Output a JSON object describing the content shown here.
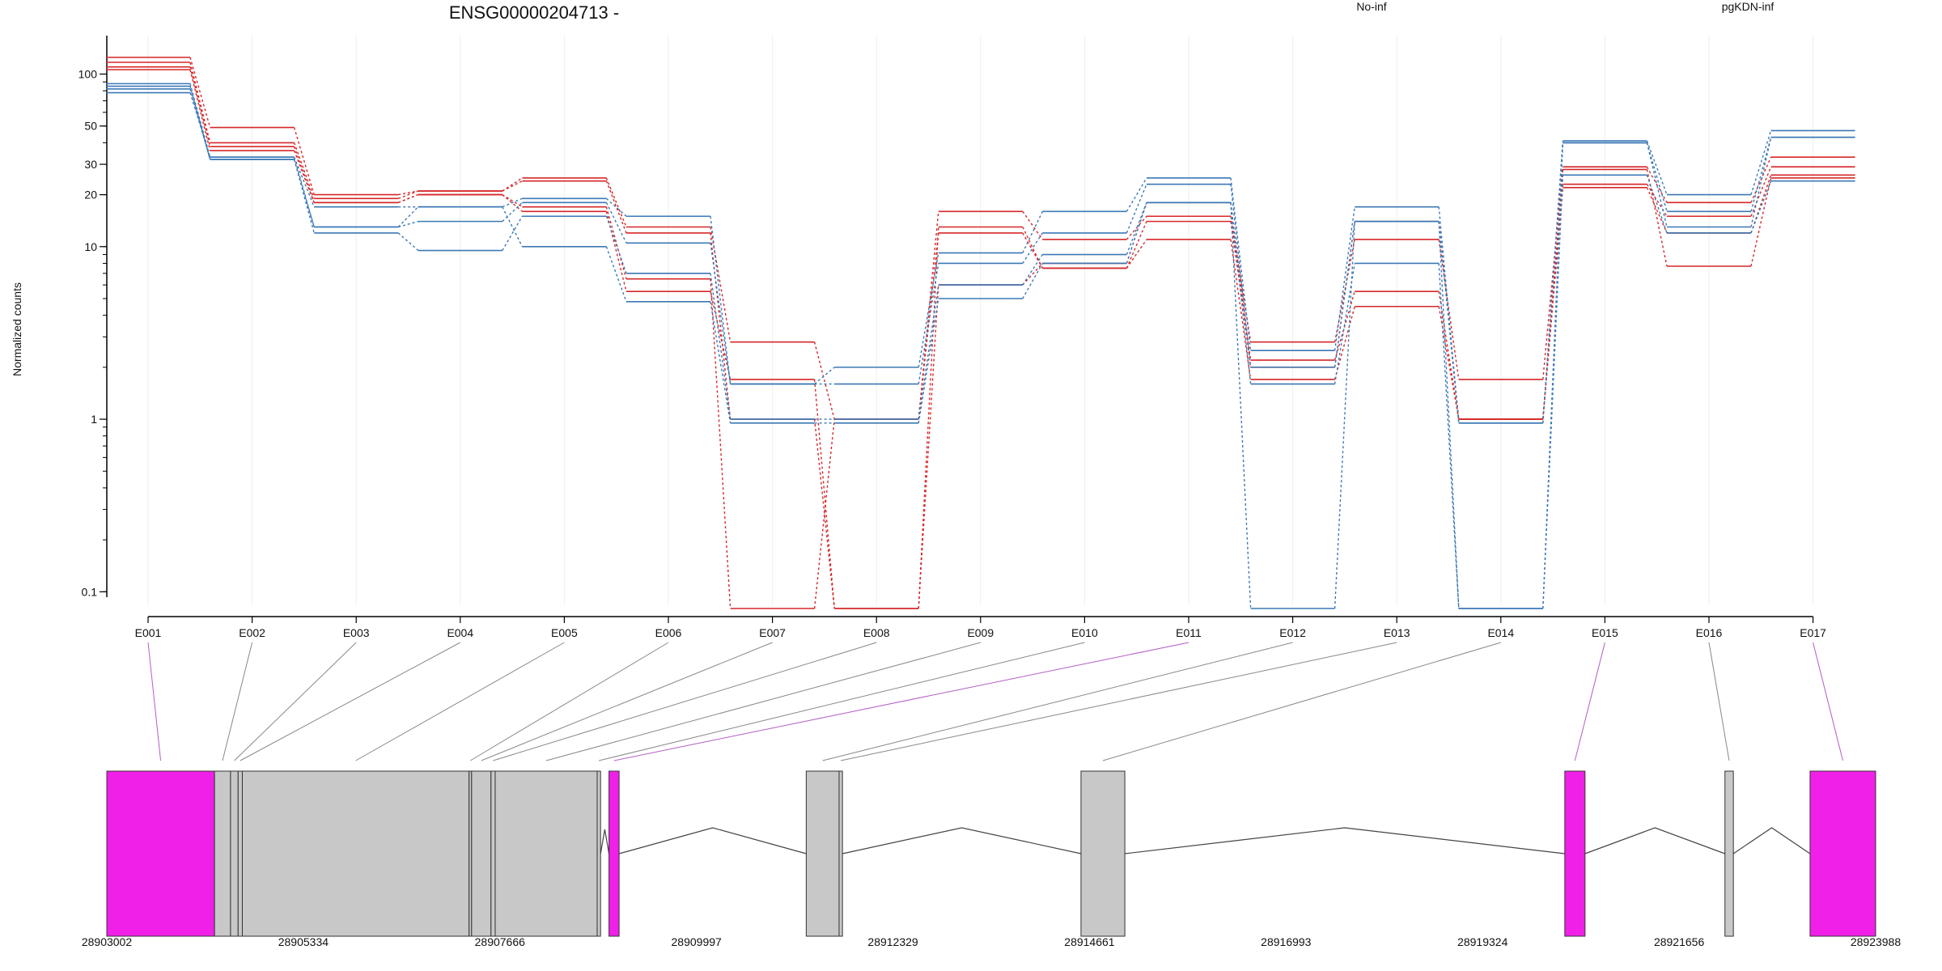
{
  "chart_data": {
    "type": "line",
    "title": "ENSG00000204713 -",
    "ylabel": "Normalized counts",
    "yscale": "log",
    "ylim": [
      0.08,
      160
    ],
    "y_ticks": [
      0.1,
      1,
      10,
      20,
      30,
      50,
      100
    ],
    "y_tick_labels": [
      "0.1",
      "1",
      "10",
      "20",
      "30",
      "50",
      "100"
    ],
    "categories": [
      "E001",
      "E002",
      "E003",
      "E004",
      "E005",
      "E006",
      "E007",
      "E008",
      "E009",
      "E010",
      "E011",
      "E012",
      "E013",
      "E014",
      "E015",
      "E016",
      "E017"
    ],
    "colors": {
      "No-inf": "#d62728",
      "pgKDN-inf": "#3b78b5",
      "highlight": "#f020e8",
      "exon_gray": "#c8c8c8"
    },
    "legend": [
      {
        "name": "No-inf",
        "color": "#d62728"
      },
      {
        "name": "pgKDN-inf",
        "color": "#3b78b5"
      }
    ],
    "series": [
      {
        "group": "No-inf",
        "values": [
          125,
          49,
          20,
          21,
          25,
          13,
          2.8,
          1.0,
          16,
          11,
          15,
          2.8,
          11,
          1.7,
          29,
          18,
          33
        ]
      },
      {
        "group": "No-inf",
        "values": [
          117,
          40,
          19,
          21,
          24,
          12,
          1.0,
          0.08,
          13,
          7.5,
          14,
          2.2,
          5.5,
          1.0,
          23,
          15,
          29
        ]
      },
      {
        "group": "No-inf",
        "values": [
          110,
          38,
          18,
          20,
          17,
          6.5,
          0.08,
          1.0,
          12,
          7.5,
          11,
          1.7,
          4.5,
          1.0,
          22,
          12,
          26
        ]
      },
      {
        "group": "No-inf",
        "values": [
          106,
          36,
          18,
          20,
          16,
          5.5,
          1.7,
          0.08,
          6.0,
          8.0,
          18,
          2.0,
          14,
          1.0,
          28,
          7.7,
          25
        ]
      },
      {
        "group": "pgKDN-inf",
        "values": [
          88,
          33,
          17,
          17,
          19,
          15,
          1.6,
          2.0,
          9.2,
          16,
          25,
          2.5,
          17,
          0.95,
          41,
          20,
          47
        ]
      },
      {
        "group": "pgKDN-inf",
        "values": [
          85,
          32,
          13,
          14,
          18,
          10.5,
          1.6,
          1.6,
          8.0,
          12,
          23,
          2.0,
          14,
          0.95,
          40,
          16,
          43
        ]
      },
      {
        "group": "pgKDN-inf",
        "values": [
          82,
          32,
          12,
          9.5,
          15,
          7.0,
          1.0,
          1.0,
          6.0,
          9.0,
          18,
          1.6,
          8.0,
          0.08,
          40,
          13,
          43
        ]
      },
      {
        "group": "pgKDN-inf",
        "values": [
          78,
          33,
          13,
          17,
          10,
          4.8,
          0.95,
          0.95,
          5.0,
          8.0,
          18,
          0.08,
          14,
          0.08,
          26,
          12,
          24
        ]
      }
    ],
    "gene_model": {
      "coordinate_labels": [
        "28903002",
        "28905334",
        "28907666",
        "28909997",
        "28912329",
        "28914661",
        "28916993",
        "28919324",
        "28921656",
        "28923988"
      ],
      "coord_range": [
        28903002,
        28923988
      ],
      "exons": [
        {
          "name": "E001",
          "start": 28903002,
          "end": 28904280,
          "highlight": true
        },
        {
          "name": "E002",
          "start": 28904280,
          "end": 28904470,
          "highlight": false
        },
        {
          "name": "E003",
          "start": 28904470,
          "end": 28904560,
          "highlight": false
        },
        {
          "name": "E004",
          "start": 28904560,
          "end": 28904610,
          "highlight": false
        },
        {
          "name": "E005",
          "start": 28904610,
          "end": 28907300,
          "highlight": false
        },
        {
          "name": "E006",
          "start": 28907300,
          "end": 28907330,
          "highlight": false
        },
        {
          "name": "E007",
          "start": 28907330,
          "end": 28907560,
          "highlight": false
        },
        {
          "name": "E008",
          "start": 28907560,
          "end": 28907610,
          "highlight": false
        },
        {
          "name": "E009",
          "start": 28907610,
          "end": 28908820,
          "highlight": false
        },
        {
          "name": "E010",
          "start": 28908820,
          "end": 28908860,
          "highlight": false
        },
        {
          "name": "E011",
          "start": 28908960,
          "end": 28909080,
          "highlight": true
        },
        {
          "name": "E012",
          "start": 28911300,
          "end": 28911690,
          "highlight": false
        },
        {
          "name": "E013",
          "start": 28911690,
          "end": 28911730,
          "highlight": false
        },
        {
          "name": "E014",
          "start": 28914560,
          "end": 28915080,
          "highlight": false
        },
        {
          "name": "E015",
          "start": 28920300,
          "end": 28920540,
          "highlight": true
        },
        {
          "name": "E016",
          "start": 28922200,
          "end": 28922300,
          "highlight": false
        },
        {
          "name": "E017",
          "start": 28923210,
          "end": 28923988,
          "highlight": true
        }
      ],
      "introns": [
        [
          28909080,
          28911300
        ],
        [
          28911730,
          28914560
        ],
        [
          28915080,
          28920300
        ],
        [
          28920540,
          28922200
        ],
        [
          28922300,
          28923210
        ]
      ]
    }
  }
}
